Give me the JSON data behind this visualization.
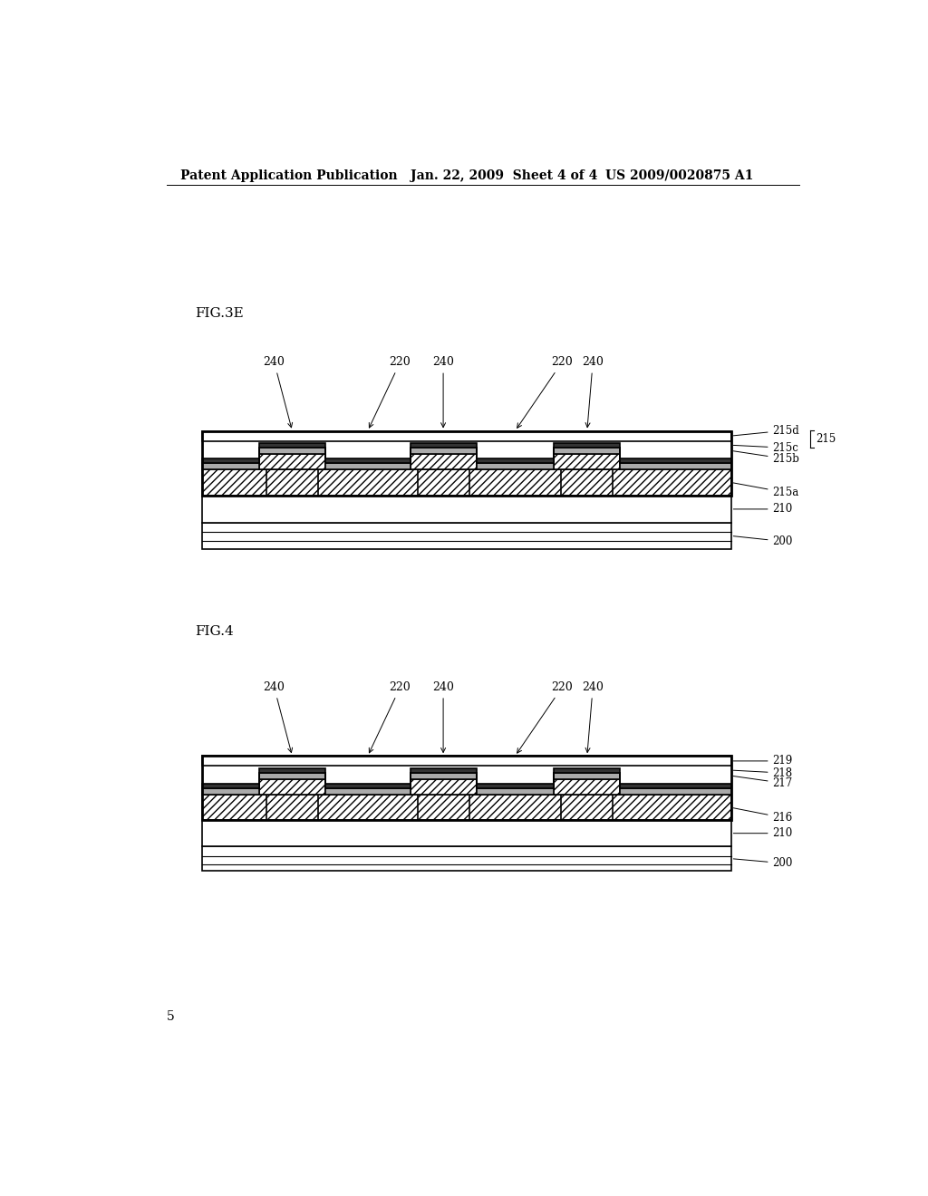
{
  "title_left": "Patent Application Publication",
  "title_mid": "Jan. 22, 2009  Sheet 4 of 4",
  "title_right": "US 2009/0020875 A1",
  "fig3e_label": "FIG.3E",
  "fig4_label": "FIG.4",
  "page_num": "5",
  "bg_color": "#ffffff",
  "line_color": "#000000",
  "hatch_pattern": "////",
  "pillar_centers": [
    0.245,
    0.455,
    0.655
  ],
  "f4_pillar_centers": [
    0.245,
    0.455,
    0.655
  ]
}
